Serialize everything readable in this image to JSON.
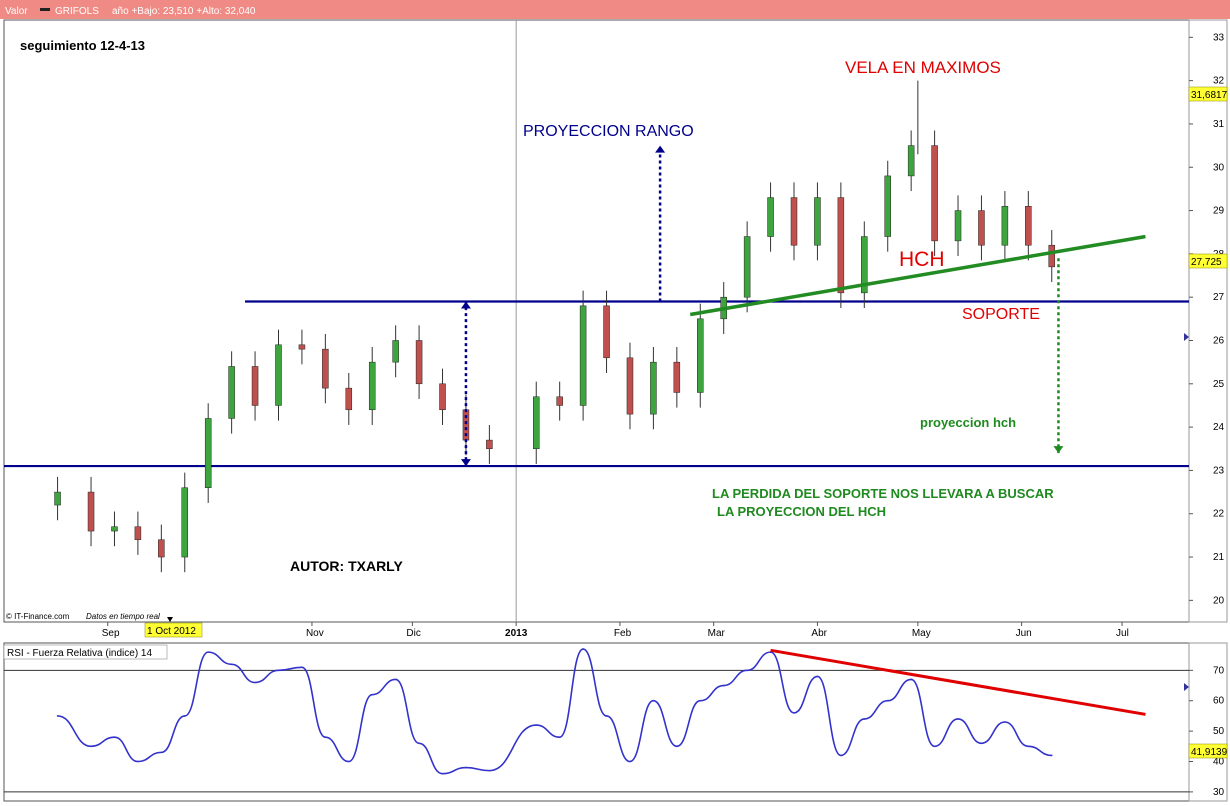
{
  "header": {
    "valor_label": "Valor",
    "ticker": "GRIFOLS",
    "info": "año +Bajo: 23,510 +Alto: 32,040"
  },
  "price_chart": {
    "note_title": "seguimiento   12-4-13",
    "source": "© IT-Finance.com",
    "source_note": "Datos en tiempo real",
    "date_badge": "1 Oct 2012",
    "last_price_badge": "27,725",
    "max_price_badge": "31,6817",
    "y_ticks": [
      "20",
      "21",
      "22",
      "23",
      "24",
      "25",
      "26",
      "27",
      "28",
      "29",
      "30",
      "31",
      "32",
      "33"
    ],
    "x_ticks": [
      "Sep",
      "Nov",
      "Dic",
      "2013",
      "Feb",
      "Mar",
      "Abr",
      "May",
      "Jun",
      "Jul"
    ],
    "annotations": {
      "vela": "VELA   EN  MAXIMOS",
      "proyeccion_rango": "PROYECCION  RANGO",
      "hch": "HCH",
      "soporte": "SOPORTE",
      "proyeccion_hch": "proyeccion   hch",
      "perdida_1": "LA   PERDIDA  DEL  SOPORTE   NOS  LLEVARA A  BUSCAR",
      "perdida_2": "LA  PROYECCION  DEL   HCH",
      "autor": "AUTOR: TXARLY"
    }
  },
  "rsi_chart": {
    "title": "RSI - Fuerza Relativa (indice) 14",
    "last_badge": "41,9139",
    "y_ticks": [
      "30",
      "40",
      "50",
      "60",
      "70"
    ]
  },
  "colors": {
    "header_bg": "#f08a84",
    "candle_up": "#3ea53e",
    "candle_down": "#c0504d",
    "level_line": "#00008b",
    "trend_green": "#228b22",
    "rsi_line": "#3333cc",
    "rsi_trend": "#e00000",
    "annotation_red": "#e00000",
    "annotation_blue": "#00008b",
    "annotation_green": "#1f8a1f",
    "badge_yellow": "#ffff33"
  },
  "chart_data": [
    {
      "type": "candlestick",
      "title": "",
      "ylim": [
        19.5,
        33.4
      ],
      "series": [
        {
          "name": "GRIFOLS",
          "points": [
            {
              "x": "2012-08-17",
              "y": 22.5
            },
            {
              "x": "2012-08-27",
              "y": 21.6
            },
            {
              "x": "2012-09-03",
              "y": 21.7
            },
            {
              "x": "2012-09-10",
              "y": 21.4
            },
            {
              "x": "2012-09-17",
              "y": 21.0
            },
            {
              "x": "2012-09-24",
              "y": 22.6
            },
            {
              "x": "2012-10-01",
              "y": 24.2
            },
            {
              "x": "2012-10-08",
              "y": 25.4
            },
            {
              "x": "2012-10-15",
              "y": 24.5
            },
            {
              "x": "2012-10-22",
              "y": 25.9
            },
            {
              "x": "2012-10-29",
              "y": 25.8
            },
            {
              "x": "2012-11-05",
              "y": 24.9
            },
            {
              "x": "2012-11-12",
              "y": 24.4
            },
            {
              "x": "2012-11-19",
              "y": 25.5
            },
            {
              "x": "2012-11-26",
              "y": 26.0
            },
            {
              "x": "2012-12-03",
              "y": 25.0
            },
            {
              "x": "2012-12-10",
              "y": 24.4
            },
            {
              "x": "2012-12-17",
              "y": 23.7
            },
            {
              "x": "2012-12-24",
              "y": 23.5
            },
            {
              "x": "2013-01-07",
              "y": 24.7
            },
            {
              "x": "2013-01-14",
              "y": 24.5
            },
            {
              "x": "2013-01-21",
              "y": 26.8
            },
            {
              "x": "2013-01-28",
              "y": 25.6
            },
            {
              "x": "2013-02-04",
              "y": 24.3
            },
            {
              "x": "2013-02-11",
              "y": 25.5
            },
            {
              "x": "2013-02-18",
              "y": 24.8
            },
            {
              "x": "2013-02-25",
              "y": 26.5
            },
            {
              "x": "2013-03-04",
              "y": 27.0
            },
            {
              "x": "2013-03-11",
              "y": 28.4
            },
            {
              "x": "2013-03-18",
              "y": 29.3
            },
            {
              "x": "2013-03-25",
              "y": 28.2
            },
            {
              "x": "2013-04-01",
              "y": 29.3
            },
            {
              "x": "2013-04-08",
              "y": 27.1
            },
            {
              "x": "2013-04-15",
              "y": 28.4
            },
            {
              "x": "2013-04-22",
              "y": 29.8
            },
            {
              "x": "2013-04-29",
              "y": 30.5
            },
            {
              "x": "2013-05-06",
              "y": 28.3
            },
            {
              "x": "2013-05-13",
              "y": 29.0
            },
            {
              "x": "2013-05-20",
              "y": 28.2
            },
            {
              "x": "2013-05-27",
              "y": 29.1
            },
            {
              "x": "2013-06-03",
              "y": 28.2
            },
            {
              "x": "2013-06-10",
              "y": 27.7
            }
          ]
        }
      ],
      "levels": [
        26.9,
        23.1
      ],
      "trendline": {
        "from": {
          "x": "2013-02-22",
          "y": 26.6
        },
        "to": {
          "x": "2013-07-08",
          "y": 28.4
        }
      },
      "markers": [
        {
          "type": "arrow-updown",
          "x": "2012-12-17",
          "from": 23.1,
          "to": 26.9
        },
        {
          "type": "arrow-up",
          "x": "2013-02-13",
          "from": 26.9,
          "to": 30.5
        },
        {
          "type": "arrow-down",
          "x": "2013-06-12",
          "from": 27.9,
          "to": 23.4
        },
        {
          "type": "spike",
          "x": "2013-05-01",
          "from": 30.3,
          "to": 32.0
        }
      ]
    },
    {
      "type": "line",
      "title": "",
      "ylim": [
        27,
        79
      ],
      "series": [
        {
          "name": "RSI 14",
          "points": [
            {
              "x": "2012-08-17",
              "y": 55
            },
            {
              "x": "2012-08-27",
              "y": 45
            },
            {
              "x": "2012-09-03",
              "y": 48
            },
            {
              "x": "2012-09-10",
              "y": 40
            },
            {
              "x": "2012-09-17",
              "y": 43
            },
            {
              "x": "2012-09-24",
              "y": 55
            },
            {
              "x": "2012-10-01",
              "y": 76
            },
            {
              "x": "2012-10-08",
              "y": 72
            },
            {
              "x": "2012-10-15",
              "y": 66
            },
            {
              "x": "2012-10-22",
              "y": 70
            },
            {
              "x": "2012-10-29",
              "y": 71
            },
            {
              "x": "2012-11-05",
              "y": 48
            },
            {
              "x": "2012-11-12",
              "y": 40
            },
            {
              "x": "2012-11-19",
              "y": 62
            },
            {
              "x": "2012-11-26",
              "y": 67
            },
            {
              "x": "2012-12-03",
              "y": 46
            },
            {
              "x": "2012-12-10",
              "y": 36
            },
            {
              "x": "2012-12-17",
              "y": 38
            },
            {
              "x": "2012-12-24",
              "y": 37
            },
            {
              "x": "2013-01-07",
              "y": 52
            },
            {
              "x": "2013-01-14",
              "y": 48
            },
            {
              "x": "2013-01-21",
              "y": 77
            },
            {
              "x": "2013-01-28",
              "y": 55
            },
            {
              "x": "2013-02-04",
              "y": 40
            },
            {
              "x": "2013-02-11",
              "y": 60
            },
            {
              "x": "2013-02-18",
              "y": 45
            },
            {
              "x": "2013-02-25",
              "y": 60
            },
            {
              "x": "2013-03-04",
              "y": 65
            },
            {
              "x": "2013-03-11",
              "y": 70
            },
            {
              "x": "2013-03-18",
              "y": 76
            },
            {
              "x": "2013-03-25",
              "y": 56
            },
            {
              "x": "2013-04-01",
              "y": 68
            },
            {
              "x": "2013-04-08",
              "y": 42
            },
            {
              "x": "2013-04-15",
              "y": 54
            },
            {
              "x": "2013-04-22",
              "y": 60
            },
            {
              "x": "2013-04-29",
              "y": 67
            },
            {
              "x": "2013-05-06",
              "y": 45
            },
            {
              "x": "2013-05-13",
              "y": 54
            },
            {
              "x": "2013-05-20",
              "y": 46
            },
            {
              "x": "2013-05-27",
              "y": 53
            },
            {
              "x": "2013-06-03",
              "y": 45
            },
            {
              "x": "2013-06-10",
              "y": 42
            }
          ]
        }
      ],
      "levels": [
        70,
        30
      ],
      "trendline": {
        "from": {
          "x": "2013-03-18",
          "y": 76.6
        },
        "to": {
          "x": "2013-07-08",
          "y": 55.5
        }
      }
    }
  ]
}
